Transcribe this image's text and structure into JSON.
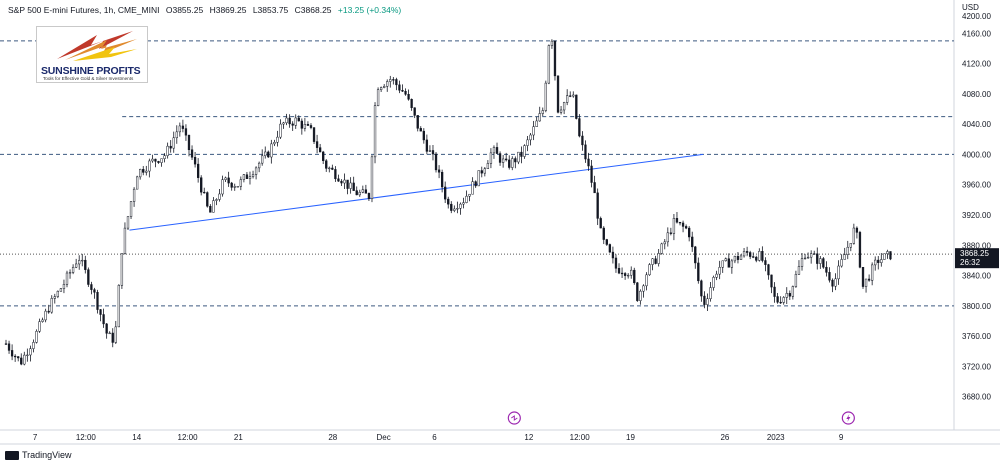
{
  "header": {
    "title": "S&P 500 E-mini Futures, 1h, CME_MINI",
    "open": "O3855.25",
    "high": "H3869.25",
    "low": "L3853.75",
    "close": "C3868.25",
    "change": "+13.25 (+0.34%)"
  },
  "logo": {
    "name": "SUNSHINE PROFITS",
    "tagline": "Tools for Effective Gold & Silver Investments"
  },
  "branding": {
    "tradingview": "TradingView"
  },
  "price_label": {
    "price": "3868.25",
    "countdown": "26:32"
  },
  "colors": {
    "candle": "#131722",
    "trendline": "#2962ff",
    "dashed": "#3d5a80",
    "price_label_bg": "#131722",
    "event_icon": "#9c27b0"
  },
  "icons": [
    "dividend-event-icon",
    "lightning-event-icon"
  ],
  "chart_data": {
    "type": "candlestick",
    "title": "S&P 500 E-mini Futures, 1h, CME_MINI",
    "y_axis_unit": "USD",
    "ylim": [
      3640,
      4200
    ],
    "y_ticks": [
      3680,
      3720,
      3760,
      3800,
      3840,
      3880,
      3920,
      3960,
      4000,
      4040,
      4080,
      4120,
      4160,
      4200
    ],
    "x_ticks": [
      "7",
      "12:00",
      "14",
      "12:00",
      "21",
      "28",
      "Dec",
      "6",
      "12",
      "12:00",
      "19",
      "26",
      "2023",
      "9"
    ],
    "price_path": [
      [
        0,
        3750
      ],
      [
        2,
        3725
      ],
      [
        4,
        3760
      ],
      [
        6,
        3800
      ],
      [
        8,
        3830
      ],
      [
        10,
        3865
      ],
      [
        12,
        3820
      ],
      [
        14,
        3760
      ],
      [
        15,
        3755
      ],
      [
        16,
        3880
      ],
      [
        18,
        3975
      ],
      [
        20,
        3990
      ],
      [
        22,
        4000
      ],
      [
        24,
        4040
      ],
      [
        26,
        3985
      ],
      [
        28,
        3920
      ],
      [
        30,
        3965
      ],
      [
        32,
        3960
      ],
      [
        34,
        3980
      ],
      [
        36,
        4000
      ],
      [
        38,
        4040
      ],
      [
        40,
        4045
      ],
      [
        42,
        4030
      ],
      [
        44,
        3985
      ],
      [
        46,
        3970
      ],
      [
        48,
        3950
      ],
      [
        50,
        3945
      ],
      [
        51,
        4090
      ],
      [
        53,
        4100
      ],
      [
        55,
        4080
      ],
      [
        57,
        4030
      ],
      [
        59,
        3990
      ],
      [
        61,
        3930
      ],
      [
        63,
        3940
      ],
      [
        65,
        3970
      ],
      [
        67,
        4005
      ],
      [
        69,
        3985
      ],
      [
        71,
        4000
      ],
      [
        73,
        4040
      ],
      [
        74,
        4060
      ],
      [
        75,
        4175
      ],
      [
        76,
        4060
      ],
      [
        78,
        4080
      ],
      [
        79,
        4020
      ],
      [
        80,
        3990
      ],
      [
        81,
        3950
      ],
      [
        82,
        3890
      ],
      [
        84,
        3850
      ],
      [
        86,
        3845
      ],
      [
        87,
        3810
      ],
      [
        88,
        3840
      ],
      [
        90,
        3870
      ],
      [
        92,
        3910
      ],
      [
        94,
        3900
      ],
      [
        96,
        3800
      ],
      [
        98,
        3850
      ],
      [
        100,
        3860
      ],
      [
        102,
        3870
      ],
      [
        104,
        3865
      ],
      [
        106,
        3805
      ],
      [
        108,
        3820
      ],
      [
        110,
        3870
      ],
      [
        112,
        3860
      ],
      [
        114,
        3830
      ],
      [
        116,
        3880
      ],
      [
        117,
        3905
      ],
      [
        118,
        3825
      ],
      [
        120,
        3860
      ],
      [
        122,
        3868.25
      ]
    ],
    "last_price": 3868.25,
    "horizontal_levels": [
      4150,
      4050,
      4000,
      3868.25,
      3800
    ],
    "trendline": [
      [
        17,
        3900
      ],
      [
        96,
        4000
      ]
    ],
    "event_markers": [
      {
        "x": 70,
        "type": "dividend"
      },
      {
        "x": 116,
        "type": "lightning"
      }
    ]
  }
}
